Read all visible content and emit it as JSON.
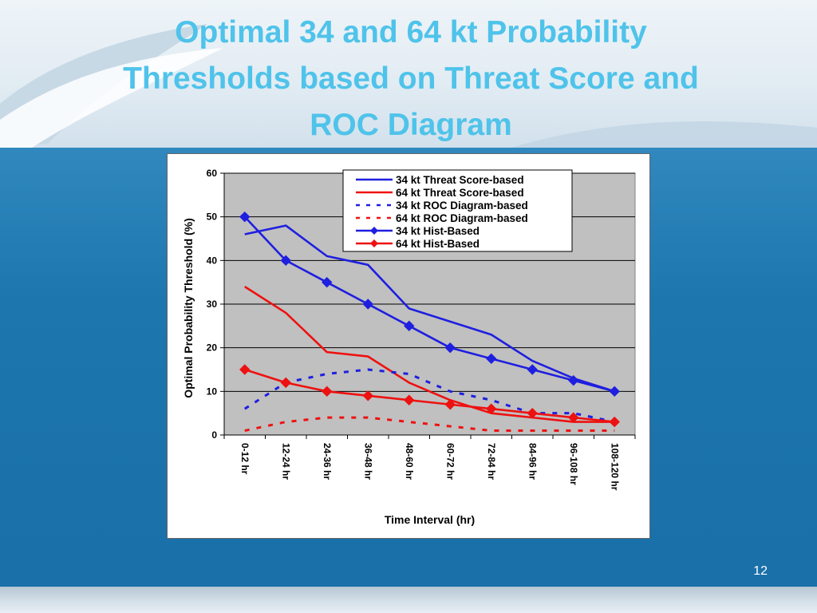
{
  "slide": {
    "title_lines": [
      "Optimal 34 and 64 kt Probability",
      "Thresholds based on Threat Score and",
      "ROC Diagram"
    ],
    "page_number": "12"
  },
  "chart_data": {
    "type": "line",
    "title": "",
    "xlabel": "Time Interval (hr)",
    "ylabel": "Optimal Probability Threshold (%)",
    "ylim": [
      0,
      60
    ],
    "yticks": [
      0,
      10,
      20,
      30,
      40,
      50,
      60
    ],
    "categories": [
      "0-12 hr",
      "12-24 hr",
      "24-36 hr",
      "36-48 hr",
      "48-60 hr",
      "60-72 hr",
      "72-84 hr",
      "84-96 hr",
      "96-108 hr",
      "108-120 hr"
    ],
    "grid": true,
    "legend_position": "top-right",
    "plot_background": "#c0c0c0",
    "series": [
      {
        "name": "34 kt Threat Score-based",
        "color": "#1f1fe0",
        "style": "solid",
        "marker": "none",
        "values": [
          46,
          48,
          41,
          39,
          29,
          26,
          23,
          17,
          13,
          10
        ]
      },
      {
        "name": "64 kt Threat Score-based",
        "color": "#ee1111",
        "style": "solid",
        "marker": "none",
        "values": [
          34,
          28,
          19,
          18,
          12,
          8,
          5,
          4,
          3,
          3
        ]
      },
      {
        "name": "34 kt ROC Diagram-based",
        "color": "#1f1fe0",
        "style": "dashed",
        "marker": "none",
        "values": [
          6,
          12,
          14,
          15,
          14,
          10,
          8,
          5,
          5,
          3
        ]
      },
      {
        "name": "64 kt ROC Diagram-based",
        "color": "#ee1111",
        "style": "dashed",
        "marker": "none",
        "values": [
          1,
          3,
          4,
          4,
          3,
          2,
          1,
          1,
          1,
          1
        ]
      },
      {
        "name": "34 kt Hist-Based",
        "color": "#1f1fe0",
        "style": "solid",
        "marker": "diamond",
        "values": [
          50,
          40,
          35,
          30,
          25,
          20,
          17.5,
          15,
          12.5,
          10
        ]
      },
      {
        "name": "64 kt Hist-Based",
        "color": "#ee1111",
        "style": "solid",
        "marker": "diamond",
        "values": [
          15,
          12,
          10,
          9,
          8,
          7,
          6,
          5,
          4,
          3
        ]
      }
    ]
  }
}
